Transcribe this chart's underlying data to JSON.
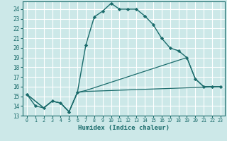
{
  "xlabel": "Humidex (Indice chaleur)",
  "bg_color": "#cce8e8",
  "line_color": "#1a6b6b",
  "grid_color": "#ffffff",
  "xlim": [
    -0.5,
    23.5
  ],
  "ylim": [
    13.0,
    24.8
  ],
  "yticks": [
    13,
    14,
    15,
    16,
    17,
    18,
    19,
    20,
    21,
    22,
    23,
    24
  ],
  "xticks": [
    0,
    1,
    2,
    3,
    4,
    5,
    6,
    7,
    8,
    9,
    10,
    11,
    12,
    13,
    14,
    15,
    16,
    17,
    18,
    19,
    20,
    21,
    22,
    23
  ],
  "line1_x": [
    0,
    1,
    2,
    3,
    4,
    5,
    6,
    7,
    8,
    9,
    10,
    11,
    12,
    13,
    14,
    15,
    16,
    17,
    18,
    19,
    20,
    21,
    22,
    23
  ],
  "line1_y": [
    15.2,
    14.0,
    13.8,
    14.5,
    14.3,
    13.4,
    15.4,
    20.3,
    23.2,
    23.8,
    24.6,
    24.0,
    24.0,
    24.0,
    23.3,
    22.4,
    21.0,
    20.0,
    19.7,
    19.0,
    16.8,
    16.0,
    16.0,
    16.0
  ],
  "line2_x": [
    0,
    2,
    3,
    4,
    5,
    6,
    7,
    23
  ],
  "line2_y": [
    15.2,
    13.8,
    14.5,
    14.3,
    13.4,
    15.4,
    15.5,
    16.0
  ],
  "line3_x": [
    0,
    2,
    3,
    4,
    5,
    6,
    7,
    19,
    20,
    21,
    22,
    23
  ],
  "line3_y": [
    15.2,
    13.8,
    14.5,
    14.3,
    13.4,
    15.4,
    15.6,
    19.0,
    16.8,
    16.0,
    16.0,
    16.0
  ]
}
